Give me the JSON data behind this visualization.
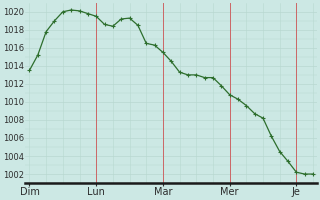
{
  "background_color": "#cce8e4",
  "line_color": "#2d6e2d",
  "marker_color": "#2d6e2d",
  "grid_color_h": "#b8d8d0",
  "grid_color_v": "#e8b8b8",
  "x_tick_labels": [
    "Dim",
    "Lun",
    "Mar",
    "Mer",
    "Je"
  ],
  "x_tick_positions": [
    0,
    8,
    16,
    24,
    32
  ],
  "ylim": [
    1001,
    1021
  ],
  "yticks": [
    1002,
    1004,
    1006,
    1008,
    1010,
    1012,
    1014,
    1016,
    1018,
    1020
  ],
  "y_values": [
    1013.5,
    1015.2,
    1017.8,
    1019.0,
    1020.0,
    1020.2,
    1020.1,
    1019.8,
    1019.5,
    1018.6,
    1018.4,
    1019.2,
    1019.3,
    1018.5,
    1016.5,
    1016.3,
    1015.5,
    1014.5,
    1013.3,
    1013.0,
    1013.0,
    1012.7,
    1012.7,
    1011.8,
    1010.8,
    1010.3,
    1009.6,
    1008.7,
    1008.2,
    1006.2,
    1004.5,
    1003.4,
    1002.2,
    1002.0,
    1002.0
  ],
  "vline_positions": [
    8,
    16,
    24,
    32
  ],
  "vline_color": "#cc6666",
  "bottom_bar_color": "#1a1a1a",
  "label_fontsize": 7,
  "ylabel_fontsize": 6
}
